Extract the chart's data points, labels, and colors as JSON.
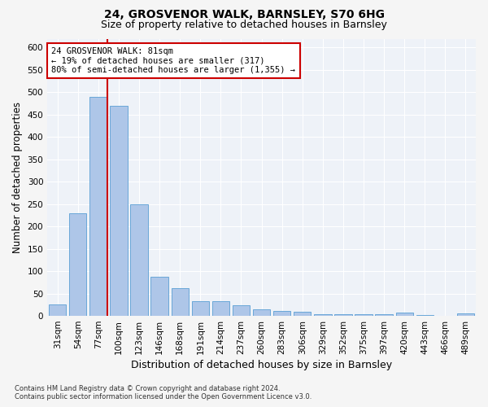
{
  "title_line1": "24, GROSVENOR WALK, BARNSLEY, S70 6HG",
  "title_line2": "Size of property relative to detached houses in Barnsley",
  "xlabel": "Distribution of detached houses by size in Barnsley",
  "ylabel": "Number of detached properties",
  "footnote": "Contains HM Land Registry data © Crown copyright and database right 2024.\nContains public sector information licensed under the Open Government Licence v3.0.",
  "categories": [
    "31sqm",
    "54sqm",
    "77sqm",
    "100sqm",
    "123sqm",
    "146sqm",
    "168sqm",
    "191sqm",
    "214sqm",
    "237sqm",
    "260sqm",
    "283sqm",
    "306sqm",
    "329sqm",
    "352sqm",
    "375sqm",
    "397sqm",
    "420sqm",
    "443sqm",
    "466sqm",
    "489sqm"
  ],
  "values": [
    25,
    230,
    490,
    470,
    250,
    88,
    62,
    33,
    33,
    23,
    14,
    11,
    10,
    4,
    3,
    3,
    3,
    7,
    2,
    0,
    5
  ],
  "bar_color": "#aec6e8",
  "bar_edge_color": "#5a9fd4",
  "vline_color": "#cc0000",
  "vline_bar_index": 2,
  "annotation_text": "24 GROSVENOR WALK: 81sqm\n← 19% of detached houses are smaller (317)\n80% of semi-detached houses are larger (1,355) →",
  "annotation_box_color": "#cc0000",
  "ylim": [
    0,
    620
  ],
  "yticks": [
    0,
    50,
    100,
    150,
    200,
    250,
    300,
    350,
    400,
    450,
    500,
    550,
    600
  ],
  "background_color": "#eef2f8",
  "grid_color": "#ffffff",
  "fig_background": "#f5f5f5",
  "title_fontsize": 10,
  "subtitle_fontsize": 9,
  "axis_label_fontsize": 8.5,
  "tick_fontsize": 7.5,
  "annotation_fontsize": 7.5,
  "footnote_fontsize": 6
}
